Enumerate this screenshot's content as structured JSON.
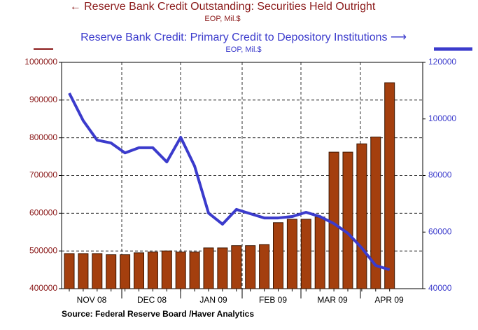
{
  "chart_data": {
    "type": "bar-line",
    "series": [
      {
        "name": "← Reserve Bank Credit Outstanding: Securities Held Outright",
        "unit": "EOP, Mil.$",
        "color": "#a43f0e",
        "axis": "y",
        "values": [
          493000,
          493000,
          493000,
          490000,
          490000,
          495000,
          497000,
          500000,
          497000,
          497000,
          508000,
          508000,
          514000,
          514000,
          517000,
          575000,
          584000,
          584000,
          590000,
          762000,
          762000,
          784000,
          802000,
          946000
        ]
      },
      {
        "name": "Reserve Bank Credit: Primary Credit to Depository Institutions ⟶",
        "unit": "EOP, Mil.$",
        "color": "#3b3bcc",
        "axis": "y2",
        "values": [
          109100,
          99400,
          92500,
          91500,
          88000,
          89800,
          89800,
          84800,
          93500,
          83300,
          66700,
          62800,
          68000,
          66500,
          65000,
          65000,
          65500,
          67000,
          65500,
          63000,
          59600,
          54400,
          48200,
          46700
        ]
      }
    ],
    "categories": [
      null,
      null,
      null,
      null,
      null,
      null,
      null,
      null,
      null,
      null,
      null,
      null,
      null,
      null,
      null,
      null,
      null,
      null,
      null,
      null,
      null,
      null,
      null,
      null
    ],
    "x_labels": [
      "NOV 08",
      "DEC 08",
      "JAN 09",
      "FEB 09",
      "MAR 09",
      "APR 09"
    ],
    "ylim": [
      400000,
      1000000
    ],
    "yticks": [
      400000,
      500000,
      600000,
      700000,
      800000,
      900000,
      1000000
    ],
    "y2lim": [
      40000,
      120000
    ],
    "y2ticks": [
      40000,
      60000,
      80000,
      100000,
      120000
    ],
    "grid": true,
    "source": "Source:  Federal Reserve Board /Haver Analytics"
  }
}
